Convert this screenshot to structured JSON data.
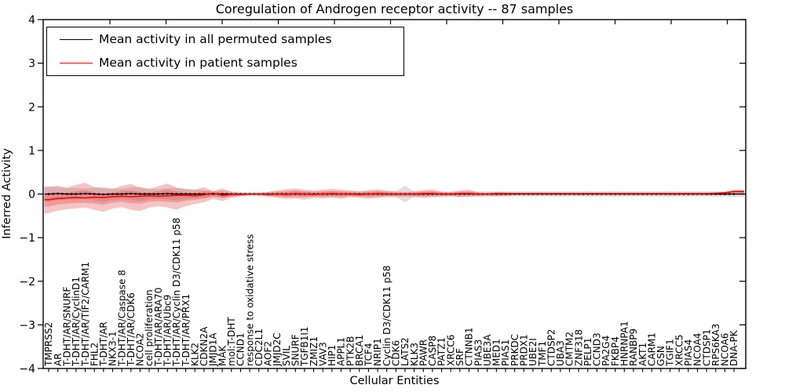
{
  "title": "Coregulation of Androgen receptor activity -- 87 samples",
  "axes": {
    "xlabel": "Cellular Entities",
    "ylabel": "Inferred Activity",
    "yticks": [
      "4",
      "3",
      "2",
      "1",
      "0",
      "−1",
      "−2",
      "−3",
      "−4"
    ],
    "ylim": [
      -4,
      4
    ]
  },
  "legend": {
    "position": "upper left",
    "items": [
      {
        "label": "Mean activity in all permuted samples",
        "color": "#000000"
      },
      {
        "label": "Mean activity in patient samples",
        "color": "#ff0000"
      }
    ]
  },
  "colors": {
    "permuted_line": "#000000",
    "patient_line": "#ff0000",
    "permuted_band": "#9e9e9e",
    "patient_band": "#e03a3a",
    "spine": "#000000"
  },
  "chart_data": {
    "type": "line",
    "title": "Coregulation of Androgen receptor activity -- 87 samples",
    "xlabel": "Cellular Entities",
    "ylabel": "Inferred Activity",
    "ylim": [
      -4,
      4
    ],
    "grid": false,
    "legend_position": "upper left",
    "categories": [
      "TMPRSS2",
      "AR",
      "T-DHT/AR/SNURF",
      "T-DHT/AR/CyclinD1",
      "T-DHT/AR/TIF2/CARM1",
      "FHL2",
      "T-DHT/AR",
      "NKX3-1",
      "T-DHT/AR/Caspase 8",
      "T-DHT/AR/CDK6",
      "NCOA2",
      "cell proliferation",
      "T-DHT/AR/ARA70",
      "T-DHT/AR/Ubc9",
      "T-DHT/AR/Cyclin D3/CDK11 p58",
      "T-DHT/AR/PRX1",
      "KLK2",
      "CDKN2A",
      "JMJD1A",
      "MAK",
      "mol:T-DHT",
      "CCND1",
      "response to oxidative stress",
      "CDC2L1",
      "AOF2",
      "JMJD2C",
      "SVIL",
      "SNURF",
      "TGFB1I1",
      "ZMIZ1",
      "VAV3",
      "HIP1",
      "APPL1",
      "PTK2B",
      "BRCA1",
      "TCF4",
      "NRIP1",
      "Cyclin D3/CDK11 p58",
      "CDK6",
      "LATS2",
      "KLK3",
      "PAWR",
      "CASP8",
      "PATZ1",
      "XRCC6",
      "SRF",
      "CTNNB1",
      "PIAS3",
      "UBE3A",
      "MED1",
      "PIAS1",
      "PRKDC",
      "PRDX1",
      "UBE2I",
      "TMF1",
      "CTDSP2",
      "UBA3",
      "CMTM2",
      "ZNF318",
      "PELP1",
      "CCND3",
      "PA2G4",
      "FKBP4",
      "HNRNPA1",
      "RANBP9",
      "AKT1",
      "CARM1",
      "GSN",
      "TGIF1",
      "XRCC5",
      "PIAS4",
      "NCOA4",
      "CTDSP1",
      "RPS6KA3",
      "NCOA6",
      "DNA-PK"
    ],
    "series": [
      {
        "name": "Mean activity in all permuted samples",
        "color": "#000000",
        "values": [
          0.0,
          0.01,
          0.0,
          0.0,
          0.01,
          0.0,
          -0.01,
          0.0,
          0.0,
          0.01,
          0.0,
          0.0,
          0.0,
          0.01,
          0.0,
          0.0,
          0.0,
          0.0,
          0.0,
          0.0,
          0.0,
          0.0,
          0.0,
          0.0,
          0.0,
          0.0,
          0.0,
          0.0,
          0.0,
          0.0,
          0.0,
          0.0,
          0.0,
          0.0,
          0.0,
          0.0,
          0.0,
          0.0,
          0.0,
          0.0,
          0.0,
          0.0,
          0.0,
          0.0,
          0.0,
          0.0,
          0.0,
          0.0,
          0.0,
          0.0,
          0.0,
          0.0,
          0.0,
          0.0,
          0.0,
          0.0,
          0.0,
          0.0,
          0.0,
          0.0,
          0.0,
          0.0,
          0.0,
          0.0,
          0.0,
          0.0,
          0.0,
          0.0,
          0.0,
          0.0,
          0.0,
          0.0,
          0.0,
          0.0,
          0.0,
          0.0
        ]
      },
      {
        "name": "Mean activity in patient samples",
        "color": "#ff0000",
        "values": [
          -0.13,
          -0.1,
          -0.09,
          -0.08,
          -0.09,
          -0.07,
          -0.08,
          -0.06,
          -0.05,
          -0.06,
          -0.05,
          -0.04,
          -0.05,
          -0.04,
          -0.03,
          -0.03,
          -0.04,
          -0.02,
          0.02,
          -0.03,
          -0.01,
          -0.01,
          0.0,
          0.0,
          -0.01,
          0.0,
          -0.01,
          0.01,
          0.0,
          -0.01,
          0.0,
          0.01,
          0.0,
          0.0,
          -0.01,
          0.0,
          0.01,
          0.0,
          0.0,
          0.0,
          0.0,
          0.01,
          0.01,
          0.0,
          0.0,
          0.01,
          0.01,
          0.0,
          0.0,
          0.01,
          0.01,
          0.01,
          0.01,
          0.01,
          0.01,
          0.01,
          0.01,
          0.01,
          0.01,
          0.01,
          0.01,
          0.01,
          0.01,
          0.01,
          0.01,
          0.01,
          0.01,
          0.01,
          0.01,
          0.01,
          0.01,
          0.01,
          0.01,
          0.02,
          0.03,
          0.06
        ]
      }
    ],
    "bands": [
      {
        "name": "permuted std band",
        "color": "#9e9e9e",
        "half_width": [
          0.18,
          0.15,
          0.13,
          0.14,
          0.12,
          0.15,
          0.17,
          0.13,
          0.12,
          0.14,
          0.16,
          0.12,
          0.11,
          0.13,
          0.14,
          0.11,
          0.1,
          0.09,
          0.07,
          0.08,
          0.06,
          0.05,
          0.04,
          0.04,
          0.05,
          0.06,
          0.07,
          0.08,
          0.07,
          0.06,
          0.07,
          0.07,
          0.07,
          0.06,
          0.06,
          0.07,
          0.07,
          0.06,
          0.06,
          0.19,
          0.06,
          0.06,
          0.06,
          0.06,
          0.06,
          0.06,
          0.06,
          0.06,
          0.06,
          0.06,
          0.06,
          0.06,
          0.06,
          0.06,
          0.06,
          0.06,
          0.07,
          0.06,
          0.06,
          0.07,
          0.06,
          0.06,
          0.07,
          0.06,
          0.06,
          0.06,
          0.06,
          0.06,
          0.07,
          0.06,
          0.06,
          0.06,
          0.06,
          0.06,
          0.06,
          0.07
        ]
      },
      {
        "name": "patient std band",
        "color": "#e03a3a",
        "upper": [
          0.16,
          0.19,
          0.15,
          0.21,
          0.26,
          0.16,
          0.13,
          0.12,
          0.19,
          0.23,
          0.15,
          0.12,
          0.18,
          0.24,
          0.15,
          0.12,
          0.1,
          0.16,
          0.07,
          0.13,
          0.05,
          0.03,
          0.02,
          0.02,
          0.05,
          0.08,
          0.11,
          0.13,
          0.1,
          0.08,
          0.1,
          0.12,
          0.1,
          0.08,
          0.06,
          0.09,
          0.11,
          0.08,
          0.06,
          0.05,
          0.06,
          0.09,
          0.11,
          0.05,
          0.04,
          0.08,
          0.1,
          0.04,
          0.03,
          0.05,
          0.04,
          0.03,
          0.03,
          0.03,
          0.03,
          0.03,
          0.03,
          0.03,
          0.03,
          0.03,
          0.03,
          0.03,
          0.03,
          0.03,
          0.03,
          0.03,
          0.03,
          0.03,
          0.03,
          0.03,
          0.03,
          0.03,
          0.03,
          0.03,
          0.04,
          0.09
        ],
        "lower": [
          -0.44,
          -0.38,
          -0.35,
          -0.33,
          -0.31,
          -0.36,
          -0.41,
          -0.33,
          -0.3,
          -0.36,
          -0.39,
          -0.31,
          -0.28,
          -0.31,
          -0.36,
          -0.28,
          -0.23,
          -0.19,
          -0.11,
          -0.16,
          -0.09,
          -0.05,
          -0.03,
          -0.03,
          -0.06,
          -0.09,
          -0.11,
          -0.1,
          -0.13,
          -0.09,
          -0.1,
          -0.08,
          -0.11,
          -0.07,
          -0.09,
          -0.11,
          -0.09,
          -0.07,
          -0.07,
          -0.06,
          -0.07,
          -0.09,
          -0.07,
          -0.06,
          -0.05,
          -0.07,
          -0.06,
          -0.05,
          -0.04,
          -0.05,
          -0.04,
          -0.03,
          -0.03,
          -0.03,
          -0.03,
          -0.03,
          -0.03,
          -0.03,
          -0.03,
          -0.03,
          -0.03,
          -0.03,
          -0.03,
          -0.03,
          -0.03,
          -0.03,
          -0.03,
          -0.03,
          -0.03,
          -0.03,
          -0.03,
          -0.03,
          -0.03,
          -0.03,
          -0.03,
          -0.02
        ]
      }
    ]
  }
}
